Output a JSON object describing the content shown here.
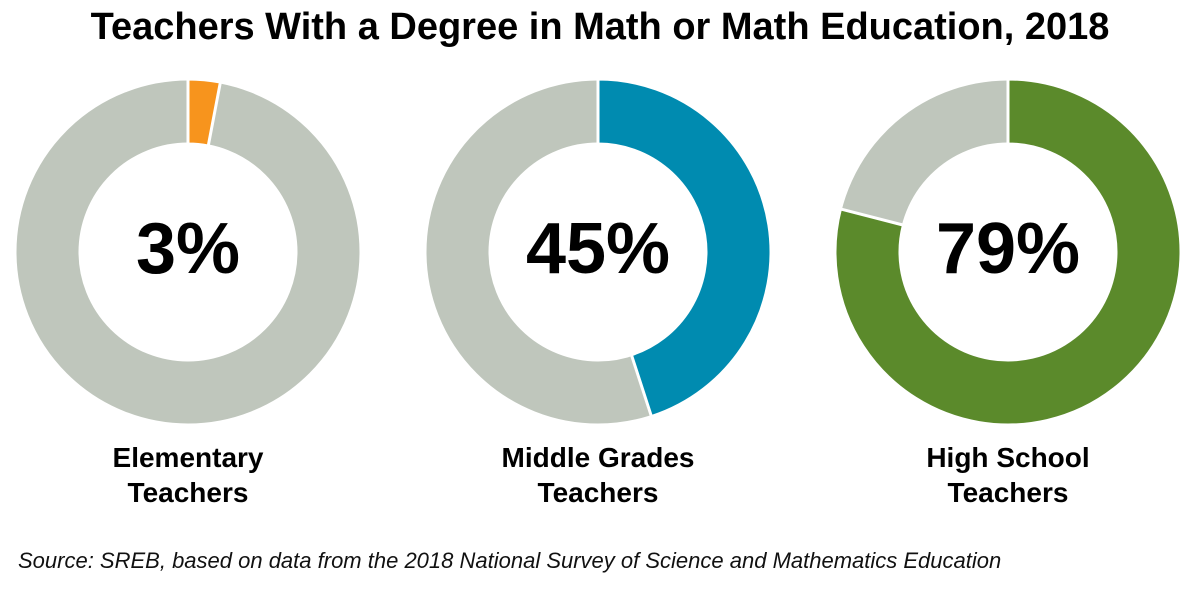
{
  "title": "Teachers With a Degree in Math or Math Education, 2018",
  "source": "Source: SREB, based on data from the 2018 National Survey of Science and Mathematics Education",
  "chart_data": [
    {
      "type": "donut",
      "category": "Elementary Teachers",
      "values": [
        3
      ],
      "value_labels": [
        "3%"
      ],
      "color": "#f7941d",
      "rest_color": "#bfc6bc"
    },
    {
      "type": "donut",
      "category": "Middle Grades Teachers",
      "values": [
        45
      ],
      "value_labels": [
        "45%"
      ],
      "color": "#008bb0",
      "rest_color": "#bfc6bc"
    },
    {
      "type": "donut",
      "category": "High School Teachers",
      "values": [
        79
      ],
      "value_labels": [
        "79%"
      ],
      "color": "#5b8a2b",
      "rest_color": "#bfc6bc"
    }
  ]
}
